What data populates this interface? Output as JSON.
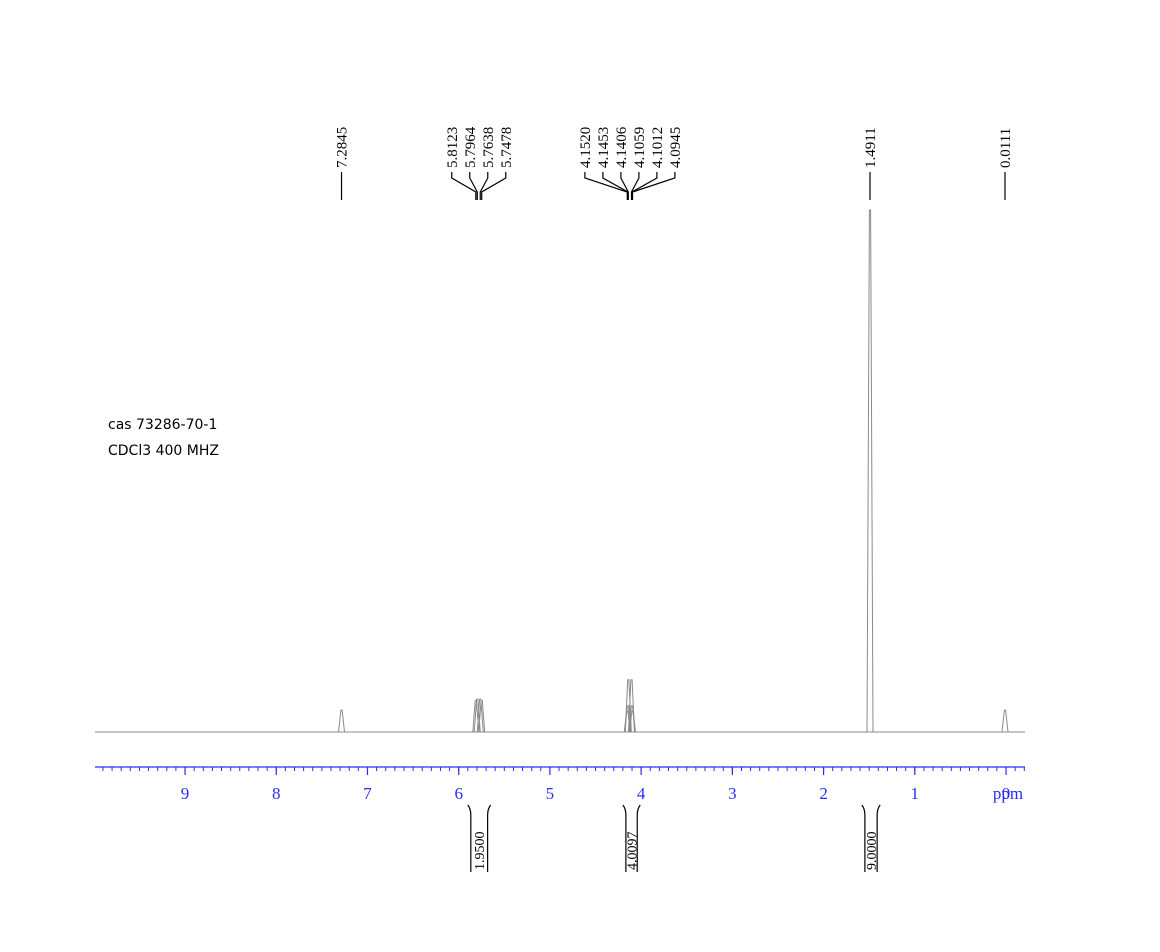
{
  "chart_data": {
    "type": "spectrum",
    "annotations": [
      "cas  73286-70-1",
      "CDCl3 400 MHZ"
    ],
    "xlabel": "ppm",
    "xlim": [
      9.987,
      -0.208
    ],
    "xticks": [
      9,
      8,
      7,
      6,
      5,
      4,
      3,
      2,
      1,
      0
    ],
    "xminor": 0.1,
    "ylim": [
      0,
      100
    ],
    "color": "#8a8a8a",
    "axis_color": "#2b2bff",
    "peak_groups": [
      {
        "values": [
          7.2845
        ],
        "value_labels": [
          "7.2845"
        ],
        "heights": [
          4.2
        ]
      },
      {
        "values": [
          5.8123,
          5.7964,
          5.7638,
          5.7478
        ],
        "value_labels": [
          "5.8123",
          "5.7964",
          "5.7638",
          "5.7478"
        ],
        "heights": [
          6,
          6.3,
          6.3,
          6
        ]
      },
      {
        "values": [
          4.152,
          4.1453,
          4.1406,
          4.1059,
          4.1012,
          4.0945
        ],
        "value_labels": [
          "4.1520",
          "4.1453",
          "4.1406",
          "4.1059",
          "4.1012",
          "4.0945"
        ],
        "heights": [
          4,
          5,
          10,
          10,
          5,
          4
        ]
      },
      {
        "values": [
          1.4911
        ],
        "value_labels": [
          "1.4911"
        ],
        "heights": [
          100
        ]
      },
      {
        "values": [
          0.0111
        ],
        "value_labels": [
          "0.0111"
        ],
        "heights": [
          4.2
        ]
      }
    ],
    "integrals": [
      {
        "range": [
          5.9,
          5.65
        ],
        "value": 1.95,
        "label": "1.9500"
      },
      {
        "range": [
          4.2,
          4.01
        ],
        "value": 4.0097,
        "label": "4.0097"
      },
      {
        "range": [
          1.58,
          1.38
        ],
        "value": 9,
        "label": "9.0000"
      }
    ]
  }
}
